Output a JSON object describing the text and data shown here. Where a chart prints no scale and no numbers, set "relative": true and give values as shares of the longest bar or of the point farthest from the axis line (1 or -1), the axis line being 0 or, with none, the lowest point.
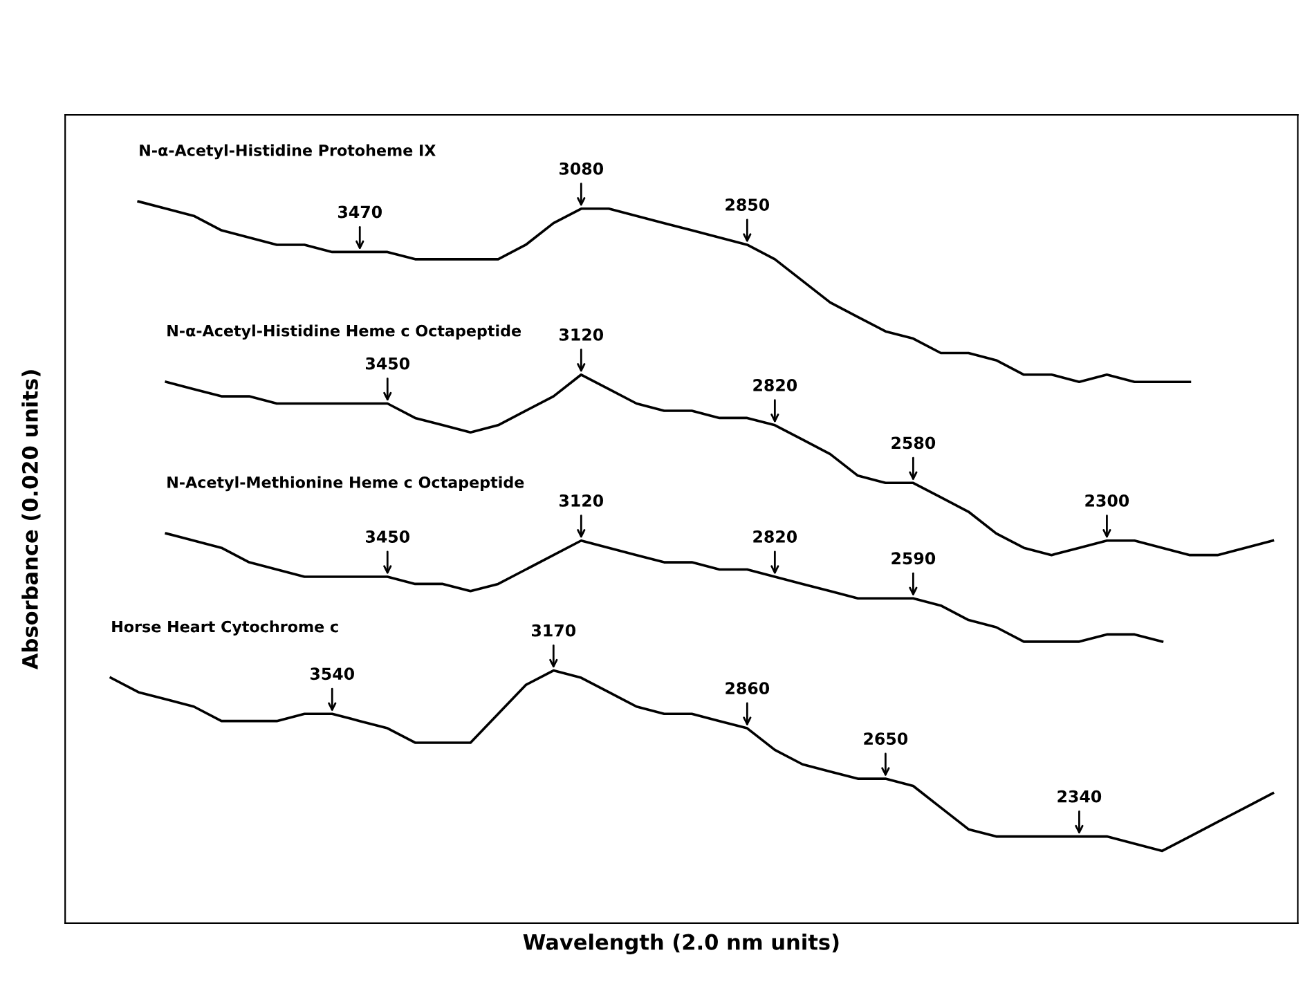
{
  "chart_data": {
    "type": "line",
    "relative": true,
    "xlabel": "Wavelength (2.0 nm units)",
    "ylabel": "Absorbance (0.020 units)",
    "categories": [
      null,
      null,
      null,
      null,
      null,
      null,
      null,
      null,
      null,
      null,
      null,
      null,
      null,
      null,
      null,
      null,
      null,
      null,
      null,
      null,
      null,
      null,
      null,
      null,
      null,
      null,
      null,
      null,
      null,
      null,
      null,
      null,
      null,
      null,
      null,
      null,
      null,
      null,
      null,
      null,
      null,
      null,
      null,
      null
    ],
    "series": [
      {
        "name": "N-α-Acetyl-Histidine Protoheme IX",
        "color": "#000000",
        "values": [
          null,
          null,
          1.0,
          0.99,
          0.98,
          0.96,
          0.95,
          0.94,
          0.94,
          0.93,
          0.93,
          0.93,
          0.92,
          0.92,
          0.92,
          0.92,
          0.94,
          0.97,
          0.99,
          0.99,
          0.98,
          0.97,
          0.96,
          0.95,
          0.94,
          0.92,
          0.89,
          0.86,
          0.84,
          0.82,
          0.81,
          0.79,
          0.79,
          0.78,
          0.76,
          0.76,
          0.75,
          0.76,
          0.75,
          0.75,
          0.75,
          null,
          null,
          null
        ]
      },
      {
        "name": "N-α-Acetyl-Histidine Heme c Octapeptide",
        "color": "#000000",
        "values": [
          null,
          null,
          null,
          0.75,
          0.74,
          0.73,
          0.73,
          0.72,
          0.72,
          0.72,
          0.72,
          0.72,
          0.7,
          0.69,
          0.68,
          0.69,
          0.71,
          0.73,
          0.76,
          0.74,
          0.72,
          0.71,
          0.71,
          0.7,
          0.7,
          0.69,
          0.67,
          0.65,
          0.62,
          0.61,
          0.61,
          0.59,
          0.57,
          0.54,
          0.52,
          0.51,
          0.52,
          0.53,
          0.53,
          0.52,
          0.51,
          0.51,
          0.52,
          0.53
        ]
      },
      {
        "name": "N-Acetyl-Methionine Heme c Octapeptide",
        "color": "#000000",
        "values": [
          null,
          null,
          null,
          0.54,
          0.53,
          0.52,
          0.5,
          0.49,
          0.48,
          0.48,
          0.48,
          0.48,
          0.47,
          0.47,
          0.46,
          0.47,
          0.49,
          0.51,
          0.53,
          0.52,
          0.51,
          0.5,
          0.5,
          0.49,
          0.49,
          0.48,
          0.47,
          0.46,
          0.45,
          0.45,
          0.45,
          0.44,
          0.42,
          0.41,
          0.39,
          0.39,
          0.39,
          0.4,
          0.4,
          0.39,
          null,
          null,
          null,
          null
        ]
      },
      {
        "name": "Horse Heart Cytochrome c",
        "color": "#000000",
        "values": [
          null,
          0.34,
          0.32,
          0.31,
          0.3,
          0.28,
          0.28,
          0.28,
          0.29,
          0.29,
          0.28,
          0.27,
          0.25,
          0.25,
          0.25,
          0.29,
          0.33,
          0.35,
          0.34,
          0.32,
          0.3,
          0.29,
          0.29,
          0.28,
          0.27,
          0.24,
          0.22,
          0.21,
          0.2,
          0.2,
          0.19,
          0.16,
          0.13,
          0.12,
          0.12,
          0.12,
          0.12,
          0.12,
          0.11,
          0.1,
          0.12,
          0.14,
          0.16,
          0.18
        ]
      }
    ],
    "annotations": [
      {
        "text": "3470",
        "y": 0.93
      },
      {
        "text": "3080",
        "y": 0.99
      },
      {
        "text": "2850",
        "y": 0.94
      },
      {
        "text": "3450",
        "y": 0.72
      },
      {
        "text": "3120",
        "y": 0.76
      },
      {
        "text": "2820",
        "y": 0.69
      },
      {
        "text": "2580",
        "y": 0.61
      },
      {
        "text": "2300",
        "y": 0.53
      },
      {
        "text": "3450",
        "y": 0.48
      },
      {
        "text": "3120",
        "y": 0.53
      },
      {
        "text": "2820",
        "y": 0.48
      },
      {
        "text": "2590",
        "y": 0.45
      },
      {
        "text": "3540",
        "y": 0.29
      },
      {
        "text": "3170",
        "y": 0.35
      },
      {
        "text": "2860",
        "y": 0.27
      },
      {
        "text": "2650",
        "y": 0.2
      },
      {
        "text": "2340",
        "y": 0.12
      }
    ]
  }
}
